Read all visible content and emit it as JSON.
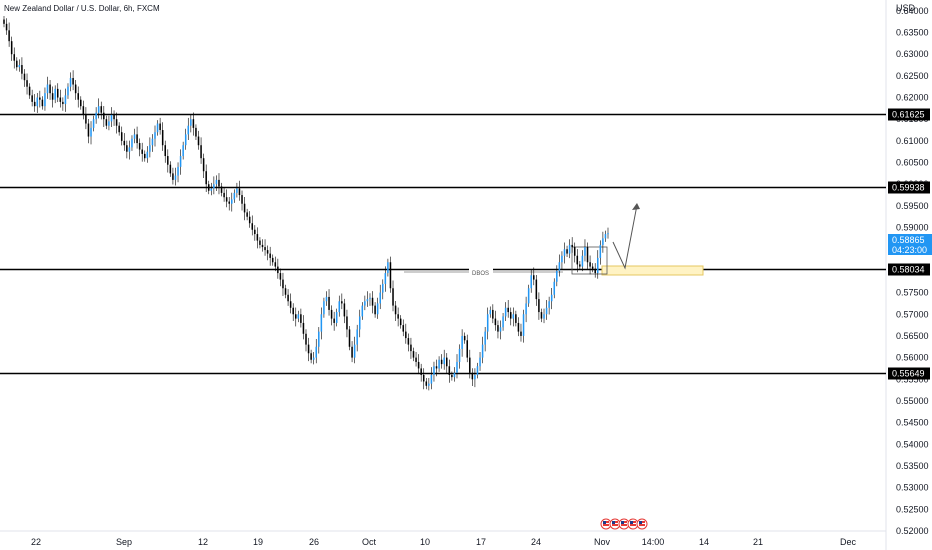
{
  "chart_data": {
    "type": "candlestick",
    "title": "New Zealand Dollar / U.S. Dollar, 6h, FXCM",
    "currency": "USD",
    "ylim": [
      0.52,
      0.6425
    ],
    "yticks": [
      "0.64000",
      "0.63500",
      "0.63000",
      "0.62500",
      "0.62000",
      "0.61500",
      "0.61000",
      "0.60500",
      "0.60000",
      "0.59500",
      "0.59000",
      "0.58500",
      "0.58000",
      "0.57500",
      "0.57000",
      "0.56500",
      "0.56000",
      "0.55500",
      "0.55000",
      "0.54500",
      "0.54000",
      "0.53500",
      "0.53000",
      "0.52500",
      "0.52000"
    ],
    "xticks": [
      "22",
      "Sep",
      "12",
      "19",
      "26",
      "Oct",
      "10",
      "17",
      "24",
      "Nov",
      "14:00",
      "14",
      "21",
      "Dec"
    ],
    "levels": [
      0.61625,
      0.59938,
      0.58034,
      0.55649
    ],
    "last_price": "0.58865",
    "countdown": "04:23:00",
    "annotation": "DBOS",
    "colors": {
      "up": "#2196f3",
      "down": "#000000",
      "price_tag": "#2196f3",
      "zone": "#fff3c4",
      "event": "#e53935"
    },
    "grid": false,
    "closes": [
      0.637,
      0.6355,
      0.633,
      0.63,
      0.6285,
      0.627,
      0.6275,
      0.6255,
      0.624,
      0.6225,
      0.6205,
      0.619,
      0.618,
      0.62,
      0.6195,
      0.618,
      0.621,
      0.623,
      0.621,
      0.6195,
      0.622,
      0.62,
      0.619,
      0.6185,
      0.6205,
      0.6225,
      0.6245,
      0.623,
      0.621,
      0.6195,
      0.618,
      0.616,
      0.614,
      0.611,
      0.613,
      0.615,
      0.6165,
      0.618,
      0.6165,
      0.615,
      0.6135,
      0.6145,
      0.616,
      0.615,
      0.6135,
      0.612,
      0.61,
      0.609,
      0.6075,
      0.6085,
      0.6105,
      0.6115,
      0.6095,
      0.608,
      0.607,
      0.606,
      0.6075,
      0.609,
      0.6105,
      0.612,
      0.614,
      0.6125,
      0.609,
      0.6065,
      0.6045,
      0.6025,
      0.601,
      0.602,
      0.604,
      0.6065,
      0.609,
      0.6115,
      0.6135,
      0.615,
      0.613,
      0.611,
      0.609,
      0.606,
      0.603,
      0.6,
      0.5985,
      0.599,
      0.6,
      0.601,
      0.5995,
      0.598,
      0.597,
      0.596,
      0.5955,
      0.5965,
      0.598,
      0.599,
      0.5975,
      0.5955,
      0.5935,
      0.5925,
      0.591,
      0.5895,
      0.5885,
      0.587,
      0.586,
      0.5855,
      0.5848,
      0.584,
      0.583,
      0.582,
      0.581,
      0.5795,
      0.578,
      0.576,
      0.5745,
      0.573,
      0.5715,
      0.57,
      0.569,
      0.57,
      0.568,
      0.5655,
      0.563,
      0.561,
      0.5595,
      0.56,
      0.5625,
      0.566,
      0.57,
      0.573,
      0.574,
      0.571,
      0.569,
      0.568,
      0.5705,
      0.573,
      0.5725,
      0.5695,
      0.5665,
      0.5625,
      0.56,
      0.563,
      0.5665,
      0.5695,
      0.572,
      0.573,
      0.5735,
      0.5738,
      0.572,
      0.57,
      0.5725,
      0.575,
      0.577,
      0.5795,
      0.582,
      0.576,
      0.572,
      0.57,
      0.569,
      0.5675,
      0.566,
      0.5645,
      0.563,
      0.5615,
      0.56,
      0.559,
      0.5575,
      0.556,
      0.5545,
      0.5535,
      0.554,
      0.556,
      0.558,
      0.5575,
      0.5595,
      0.5585,
      0.56,
      0.558,
      0.556,
      0.5555,
      0.5565,
      0.559,
      0.562,
      0.565,
      0.564,
      0.56,
      0.5565,
      0.555,
      0.556,
      0.558,
      0.56,
      0.563,
      0.566,
      0.57,
      0.571,
      0.569,
      0.5675,
      0.566,
      0.567,
      0.5695,
      0.5715,
      0.5705,
      0.569,
      0.57,
      0.568,
      0.566,
      0.565,
      0.57,
      0.5725,
      0.576,
      0.579,
      0.578,
      0.5735,
      0.5705,
      0.569,
      0.57,
      0.5715,
      0.573,
      0.5745,
      0.5775,
      0.58,
      0.582,
      0.5835,
      0.585,
      0.584,
      0.586,
      0.5855,
      0.5835,
      0.5815,
      0.581,
      0.5835,
      0.5855,
      0.582,
      0.581,
      0.5805,
      0.5795,
      0.583,
      0.586,
      0.5875,
      0.5885,
      0.5887
    ]
  }
}
